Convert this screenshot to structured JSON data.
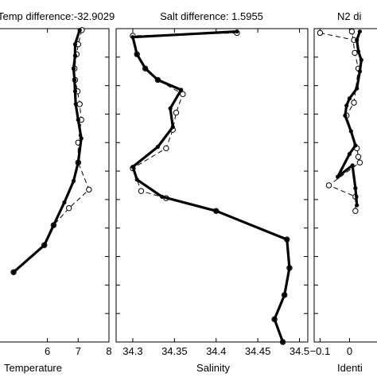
{
  "chart_data": [
    {
      "type": "line",
      "title": "Temp difference:-32.9029",
      "xlabel": "Temperature",
      "ylabel": "",
      "xlim": [
        4.2,
        8
      ],
      "ylim": [
        0,
        11
      ],
      "xticks": [
        6,
        7,
        8
      ],
      "grid": false,
      "series": [
        {
          "style": "dashed-circles",
          "x": [
            7.12,
            7.0,
            6.95,
            6.88,
            6.9,
            6.98,
            7.05,
            7.1,
            7.0,
            7.0,
            7.35,
            6.7,
            6.2,
            5.9,
            4.9
          ],
          "y": [
            0.05,
            0.55,
            0.9,
            1.4,
            1.8,
            2.2,
            2.65,
            3.2,
            4.0,
            4.7,
            5.65,
            6.3,
            6.9,
            7.6,
            8.55
          ]
        },
        {
          "style": "thick",
          "x": [
            7.05,
            6.9,
            6.9,
            6.85,
            6.88,
            6.9,
            6.92,
            7.0,
            7.1,
            7.0,
            6.85,
            6.55,
            6.2,
            5.9,
            4.9
          ],
          "y": [
            0.05,
            0.55,
            0.95,
            1.4,
            1.8,
            2.2,
            2.65,
            3.2,
            3.85,
            4.7,
            5.35,
            6.1,
            6.9,
            7.6,
            8.55
          ]
        }
      ]
    },
    {
      "type": "line",
      "title": "Salt difference:  1.5955",
      "xlabel": "Salinity",
      "ylabel": "",
      "xlim": [
        34.28,
        34.51
      ],
      "ylim": [
        0,
        11
      ],
      "xticks": [
        "34.3",
        "34.35",
        "34.4",
        "34.45",
        "34.5"
      ],
      "grid": false,
      "series": [
        {
          "style": "dashed-circles",
          "x": [
            34.425,
            34.3,
            34.305,
            34.315,
            34.33,
            34.36,
            34.352,
            34.348,
            34.34,
            34.3,
            34.31,
            34.34,
            34.4,
            34.485,
            34.488,
            34.482,
            34.47,
            34.48
          ],
          "y": [
            0.15,
            0.25,
            0.9,
            1.4,
            1.8,
            2.3,
            2.95,
            3.55,
            4.2,
            4.9,
            5.7,
            5.95,
            6.4,
            7.4,
            8.4,
            9.35,
            10.2,
            11.0
          ]
        },
        {
          "style": "thick",
          "x": [
            34.425,
            34.3,
            34.305,
            34.315,
            34.33,
            34.358,
            34.345,
            34.348,
            34.33,
            34.3,
            34.305,
            34.335,
            34.4,
            34.485,
            34.488,
            34.482,
            34.47,
            34.48
          ],
          "y": [
            0.1,
            0.3,
            0.9,
            1.4,
            1.8,
            2.15,
            2.8,
            3.45,
            4.15,
            4.85,
            5.3,
            5.9,
            6.4,
            7.4,
            8.4,
            9.35,
            10.2,
            11.0
          ]
        }
      ]
    },
    {
      "type": "line",
      "title": "N2 di",
      "xlabel": "Identi",
      "ylabel": "",
      "xlim": [
        -0.12,
        0.15
      ],
      "ylim": [
        0,
        11
      ],
      "xticks": [
        "−0.1",
        "0"
      ],
      "grid": false,
      "series": [
        {
          "style": "dashed-circles",
          "x": [
            -0.1,
            0.015,
            0.008,
            0.018,
            0.03,
            0.015,
            -0.01,
            0.025,
            0.03,
            0.035,
            -0.07,
            0.02,
            0.02
          ],
          "y": [
            0.15,
            0.4,
            0.1,
            0.85,
            1.4,
            2.6,
            3.05,
            4.2,
            4.5,
            4.7,
            5.5,
            5.9,
            6.4
          ]
        },
        {
          "style": "thick",
          "x": [
            0.035,
            0.025,
            0.03,
            0.04,
            0.035,
            0.025,
            0.0,
            -0.01,
            -0.015,
            0.005,
            0.02,
            0.0,
            -0.04,
            0.01,
            0.02,
            0.025
          ],
          "y": [
            0.1,
            0.4,
            0.8,
            1.1,
            1.5,
            2.1,
            2.45,
            2.7,
            3.05,
            3.6,
            4.1,
            4.4,
            5.2,
            4.8,
            5.6,
            6.2
          ]
        }
      ]
    }
  ]
}
